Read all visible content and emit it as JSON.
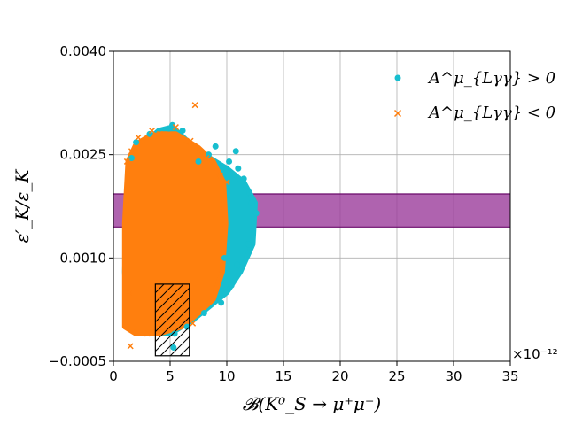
{
  "chart_data": {
    "type": "scatter",
    "xlabel": "𝓑(K⁰_S → μ⁺μ⁻)",
    "ylabel": "ε′_K/ε_K",
    "x_multiplier": "×10⁻¹²",
    "xlim": [
      0,
      35
    ],
    "ylim": [
      -0.0005,
      0.004
    ],
    "x_ticks": [
      0,
      5,
      10,
      15,
      20,
      25,
      30,
      35
    ],
    "x_tick_labels": [
      "0",
      "5",
      "10",
      "15",
      "20",
      "25",
      "30",
      "35"
    ],
    "y_ticks": [
      -0.0005,
      0.001,
      0.0025,
      0.004
    ],
    "y_tick_labels": [
      "−0.0005",
      "0.0010",
      "0.0025",
      "0.0040"
    ],
    "grid": true,
    "legend_position": "top-right",
    "series": [
      {
        "name": "A^μ_{Lγγ} > 0",
        "marker": "circle",
        "color": "#17becf",
        "region_outline": [
          [
            1.2,
            0.0
          ],
          [
            1.0,
            0.0008
          ],
          [
            1.2,
            0.002
          ],
          [
            2.0,
            0.0025
          ],
          [
            3.0,
            0.0027
          ],
          [
            4.0,
            0.00285
          ],
          [
            5.2,
            0.0029
          ],
          [
            6.5,
            0.0027
          ],
          [
            8.0,
            0.0025
          ],
          [
            10.0,
            0.0023
          ],
          [
            11.5,
            0.0021
          ],
          [
            12.5,
            0.0018
          ],
          [
            12.3,
            0.0012
          ],
          [
            11.2,
            0.0008
          ],
          [
            10.0,
            0.0005
          ],
          [
            8.5,
            0.0003
          ],
          [
            7.0,
            0.0001
          ],
          [
            5.0,
            -0.0001
          ],
          [
            3.0,
            -0.0001
          ],
          [
            1.5,
            0.0
          ]
        ],
        "points": [
          [
            5.2,
            0.00293
          ],
          [
            4.9,
            0.00288
          ],
          [
            3.2,
            0.0028
          ],
          [
            6.1,
            0.00285
          ],
          [
            9.0,
            0.00262
          ],
          [
            10.8,
            0.00255
          ],
          [
            8.4,
            0.0025
          ],
          [
            12.2,
            0.0018
          ],
          [
            12.6,
            0.00165
          ],
          [
            11.9,
            0.0012
          ],
          [
            10.4,
            0.0006
          ],
          [
            9.5,
            0.00035
          ],
          [
            8.0,
            0.0002
          ],
          [
            5.4,
            -0.0001
          ],
          [
            5.3,
            -0.0003
          ],
          [
            6.5,
            0.0
          ],
          [
            1.6,
            0.00245
          ],
          [
            2.0,
            0.00268
          ],
          [
            11.5,
            0.00215
          ],
          [
            12.0,
            0.00195
          ],
          [
            11.0,
            0.0023
          ],
          [
            10.2,
            0.0024
          ],
          [
            7.5,
            0.0024
          ],
          [
            9.8,
            0.001
          ],
          [
            10.9,
            0.0009
          ]
        ]
      },
      {
        "name": "A^μ_{Lγγ} < 0",
        "marker": "x",
        "color": "#ff7f0e",
        "region_outline": [
          [
            1.0,
            0.0
          ],
          [
            1.0,
            0.0015
          ],
          [
            1.3,
            0.0024
          ],
          [
            2.0,
            0.00265
          ],
          [
            3.0,
            0.00275
          ],
          [
            4.2,
            0.0028
          ],
          [
            5.5,
            0.0028
          ],
          [
            6.5,
            0.0027
          ],
          [
            7.5,
            0.0026
          ],
          [
            8.8,
            0.0024
          ],
          [
            9.7,
            0.0021
          ],
          [
            9.9,
            0.0015
          ],
          [
            9.6,
            0.0008
          ],
          [
            8.8,
            0.0004
          ],
          [
            7.5,
            0.0002
          ],
          [
            6.0,
            0.0
          ],
          [
            4.0,
            -0.0001
          ],
          [
            2.0,
            -0.0001
          ]
        ],
        "points": [
          [
            7.2,
            0.00322
          ],
          [
            3.4,
            0.00285
          ],
          [
            4.1,
            0.0028
          ],
          [
            5.5,
            0.0029
          ],
          [
            2.2,
            0.00275
          ],
          [
            1.6,
            0.00255
          ],
          [
            1.5,
            -0.00028
          ],
          [
            1.4,
            0.0005
          ],
          [
            9.4,
            0.0022
          ],
          [
            10.0,
            0.0021
          ],
          [
            8.2,
            0.00245
          ],
          [
            6.8,
            0.0027
          ],
          [
            1.2,
            0.0024
          ],
          [
            3.0,
            -0.0001
          ],
          [
            7.0,
            5e-05
          ]
        ]
      }
    ],
    "band": {
      "y_min": 0.00145,
      "y_max": 0.00193,
      "fill": "#9b3c9b",
      "opacity": 0.8,
      "edge": "#6a0a6a"
    },
    "hatched_box": {
      "x_min": 3.7,
      "x_max": 6.7,
      "y_min": -0.00042,
      "y_max": 0.00062,
      "hatch": "//"
    }
  }
}
